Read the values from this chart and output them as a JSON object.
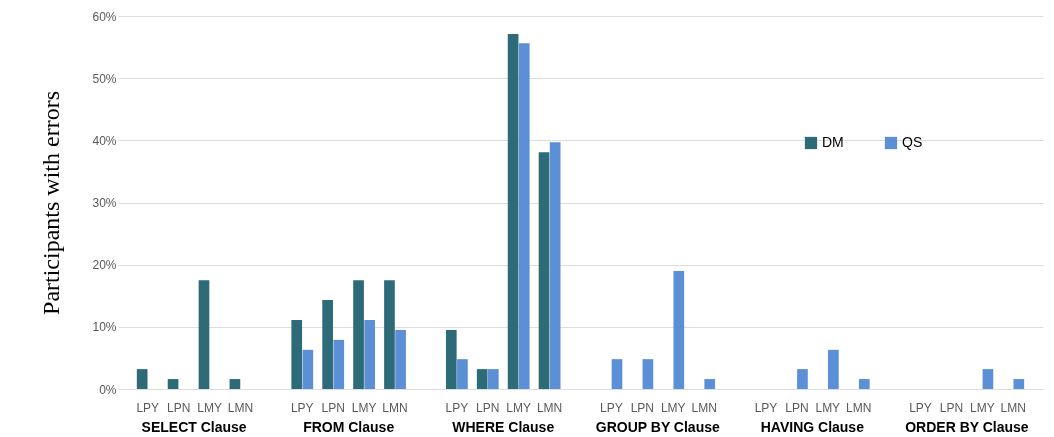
{
  "chart_data": {
    "type": "bar",
    "ylabel": "Participants with errors",
    "categories": [
      "LPY",
      "LPN",
      "LMY",
      "LMN",
      "LPY",
      "LPN",
      "LMY",
      "LMN",
      "LPY",
      "LPN",
      "LMY",
      "LMN",
      "LPY",
      "LPN",
      "LMY",
      "LMN",
      "LPY",
      "LPN",
      "LMY",
      "LMN",
      "LPY",
      "LPN",
      "LMY",
      "LMN"
    ],
    "annotations": [
      "SELECT Clause",
      "FROM Clause",
      "WHERE Clause",
      "GROUP BY Clause",
      "HAVING Clause",
      "ORDER BY Clause"
    ],
    "series": [
      {
        "name": "DM",
        "color": "#2e6b78",
        "values": [
          3.2,
          1.6,
          17.5,
          1.6,
          11.1,
          14.3,
          17.5,
          17.5,
          9.5,
          3.2,
          57.1,
          38.1,
          0,
          0,
          0,
          0,
          0,
          0,
          0,
          0,
          0,
          0,
          0,
          0
        ]
      },
      {
        "name": "QS",
        "color": "#5b8fd6",
        "values": [
          0,
          0,
          0,
          0,
          6.3,
          7.9,
          11.1,
          9.5,
          4.8,
          3.2,
          55.6,
          39.7,
          4.8,
          4.8,
          19.0,
          1.6,
          0,
          3.2,
          6.3,
          1.6,
          0,
          0,
          3.2,
          1.6
        ]
      }
    ],
    "ylim": [
      0,
      60
    ],
    "yticks": [
      {
        "value": 0,
        "label": "0%"
      },
      {
        "value": 10,
        "label": "10%"
      },
      {
        "value": 20,
        "label": "20%"
      },
      {
        "value": 30,
        "label": "30%"
      },
      {
        "value": 40,
        "label": "40%"
      },
      {
        "value": 50,
        "label": "50%"
      },
      {
        "value": 60,
        "label": "60%"
      }
    ],
    "grid": "y",
    "legend": "top right"
  }
}
